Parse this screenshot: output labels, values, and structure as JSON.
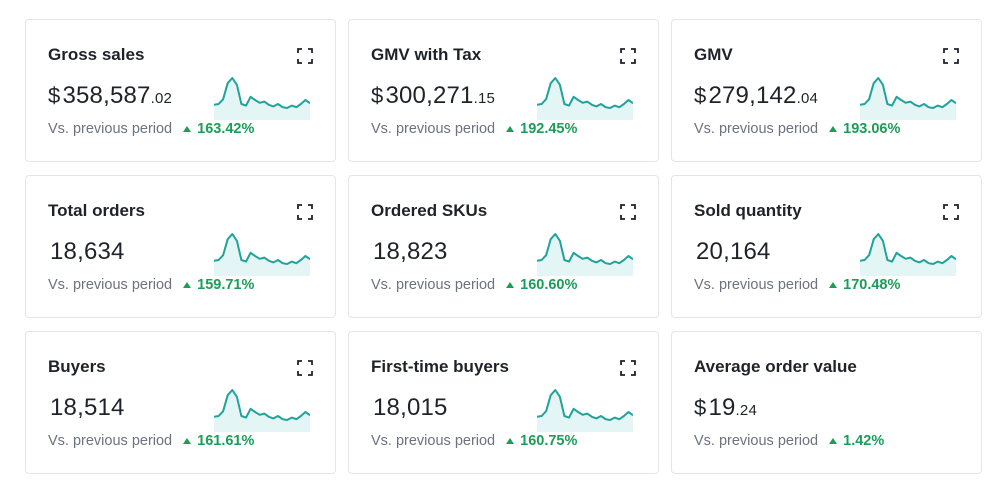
{
  "colors": {
    "sparkline": "#1fa39a",
    "sparkline_fill": "#e3f5f4",
    "positive": "#1a9e57"
  },
  "cards": [
    {
      "title": "Gross sales",
      "currency": "$",
      "value_main": "358,587",
      "value_decimal": ".02",
      "compare_label": "Vs. previous period",
      "change": "163.42%",
      "trend": "up",
      "expandable": true,
      "sparkline": true
    },
    {
      "title": "GMV with Tax",
      "currency": "$",
      "value_main": "300,271",
      "value_decimal": ".15",
      "compare_label": "Vs. previous period",
      "change": "192.45%",
      "trend": "up",
      "expandable": true,
      "sparkline": true
    },
    {
      "title": "GMV",
      "currency": "$",
      "value_main": "279,142",
      "value_decimal": ".04",
      "compare_label": "Vs. previous period",
      "change": "193.06%",
      "trend": "up",
      "expandable": true,
      "sparkline": true
    },
    {
      "title": "Total orders",
      "currency": "",
      "value_main": "18,634",
      "value_decimal": "",
      "compare_label": "Vs. previous period",
      "change": "159.71%",
      "trend": "up",
      "expandable": true,
      "sparkline": true
    },
    {
      "title": "Ordered SKUs",
      "currency": "",
      "value_main": "18,823",
      "value_decimal": "",
      "compare_label": "Vs. previous period",
      "change": "160.60%",
      "trend": "up",
      "expandable": true,
      "sparkline": true
    },
    {
      "title": "Sold quantity",
      "currency": "",
      "value_main": "20,164",
      "value_decimal": "",
      "compare_label": "Vs. previous period",
      "change": "170.48%",
      "trend": "up",
      "expandable": true,
      "sparkline": true
    },
    {
      "title": "Buyers",
      "currency": "",
      "value_main": "18,514",
      "value_decimal": "",
      "compare_label": "Vs. previous period",
      "change": "161.61%",
      "trend": "up",
      "expandable": true,
      "sparkline": true
    },
    {
      "title": "First-time buyers",
      "currency": "",
      "value_main": "18,015",
      "value_decimal": "",
      "compare_label": "Vs. previous period",
      "change": "160.75%",
      "trend": "up",
      "expandable": true,
      "sparkline": true
    },
    {
      "title": "Average order value",
      "currency": "$",
      "value_main": "19",
      "value_decimal": ".24",
      "compare_label": "Vs. previous period",
      "change": "1.42%",
      "trend": "up",
      "expandable": false,
      "sparkline": false
    }
  ]
}
